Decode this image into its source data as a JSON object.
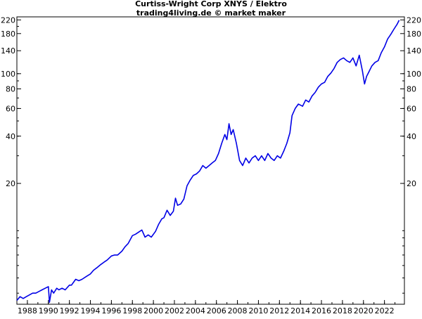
{
  "chart_data": {
    "type": "line",
    "title": "Curtiss-Wright Corp XNYS / Elektro",
    "subtitle": "trading4living.de © market maker",
    "y_scale": "log",
    "ylim": [
      3.4,
      230
    ],
    "xlim": [
      1987.0,
      2023.9
    ],
    "y_ticks": [
      220,
      180,
      140,
      100,
      80,
      60,
      40,
      20
    ],
    "x_ticks": [
      1988,
      1990,
      1992,
      1994,
      1996,
      1998,
      2000,
      2002,
      2004,
      2006,
      2008,
      2010,
      2012,
      2014,
      2016,
      2018,
      2020,
      2022
    ],
    "line_color": "#0000e6",
    "series": [
      {
        "x": [
          1987.0,
          1987.3,
          1987.6,
          1987.9,
          1988.2,
          1988.5,
          1988.8,
          1989.1,
          1989.4,
          1989.7,
          1990.0,
          1990.1,
          1990.3,
          1990.5,
          1990.8,
          1991.0,
          1991.3,
          1991.6,
          1992.0,
          1992.2,
          1992.4,
          1992.6,
          1992.9,
          1993.2,
          1993.6,
          1994.0,
          1994.3,
          1994.6,
          1995.0,
          1995.3,
          1995.6,
          1996.0,
          1996.3,
          1996.6,
          1997.0,
          1997.3,
          1997.6,
          1998.0,
          1998.3,
          1998.6,
          1998.9,
          1999.2,
          1999.5,
          1999.8,
          2000.2,
          2000.5,
          2000.8,
          2001.0,
          2001.3,
          2001.6,
          2001.9,
          2002.1,
          2002.3,
          2002.6,
          2002.9,
          2003.2,
          2003.5,
          2003.8,
          2004.1,
          2004.4,
          2004.7,
          2005.0,
          2005.3,
          2005.6,
          2005.9,
          2006.2,
          2006.5,
          2006.8,
          2007.0,
          2007.2,
          2007.4,
          2007.6,
          2007.9,
          2008.2,
          2008.5,
          2008.8,
          2009.1,
          2009.4,
          2009.7,
          2010.0,
          2010.3,
          2010.6,
          2010.9,
          2011.2,
          2011.5,
          2011.8,
          2012.1,
          2012.4,
          2012.7,
          2013.0,
          2013.2,
          2013.5,
          2013.8,
          2014.2,
          2014.5,
          2014.8,
          2015.1,
          2015.4,
          2015.7,
          2016.0,
          2016.3,
          2016.6,
          2016.9,
          2017.2,
          2017.5,
          2017.8,
          2018.1,
          2018.4,
          2018.7,
          2019.0,
          2019.3,
          2019.6,
          2019.9,
          2020.1,
          2020.3,
          2020.5,
          2020.8,
          2021.1,
          2021.4,
          2021.7,
          2022.0,
          2022.3,
          2022.6,
          2022.9,
          2023.2,
          2023.4
        ],
        "y": [
          3.6,
          3.8,
          3.7,
          3.8,
          3.9,
          4.0,
          4.0,
          4.1,
          4.2,
          4.3,
          4.4,
          3.5,
          4.2,
          4.0,
          4.3,
          4.2,
          4.3,
          4.2,
          4.5,
          4.5,
          4.7,
          4.9,
          4.8,
          4.9,
          5.1,
          5.3,
          5.6,
          5.8,
          6.1,
          6.3,
          6.5,
          6.9,
          7.0,
          7.0,
          7.4,
          7.9,
          8.3,
          9.3,
          9.5,
          9.8,
          10.1,
          9.1,
          9.4,
          9.1,
          9.9,
          11.0,
          11.9,
          12.1,
          13.5,
          12.5,
          13.3,
          16.1,
          14.5,
          14.8,
          15.9,
          19.3,
          21.0,
          22.5,
          23.0,
          24.0,
          26.0,
          25.0,
          26.0,
          27.0,
          28.0,
          31.0,
          36.0,
          41.0,
          38.0,
          48.0,
          41.0,
          44.0,
          36.0,
          28.0,
          26.0,
          29.0,
          27.0,
          29.0,
          30.0,
          28.0,
          30.0,
          28.0,
          31.0,
          29.0,
          28.0,
          30.0,
          29.0,
          32.0,
          36.0,
          42.0,
          54.0,
          60.0,
          64.0,
          62.0,
          68.0,
          66.0,
          72.0,
          76.0,
          82.0,
          86.0,
          88.0,
          96.0,
          101.0,
          108.0,
          118.0,
          123.0,
          126.0,
          121.0,
          118.0,
          126.0,
          112.0,
          131.0,
          104.0,
          86.0,
          96.0,
          102.0,
          112.0,
          118.0,
          121.0,
          136.0,
          148.0,
          166.0,
          178.0,
          192.0,
          206.0,
          219.0
        ]
      }
    ]
  }
}
